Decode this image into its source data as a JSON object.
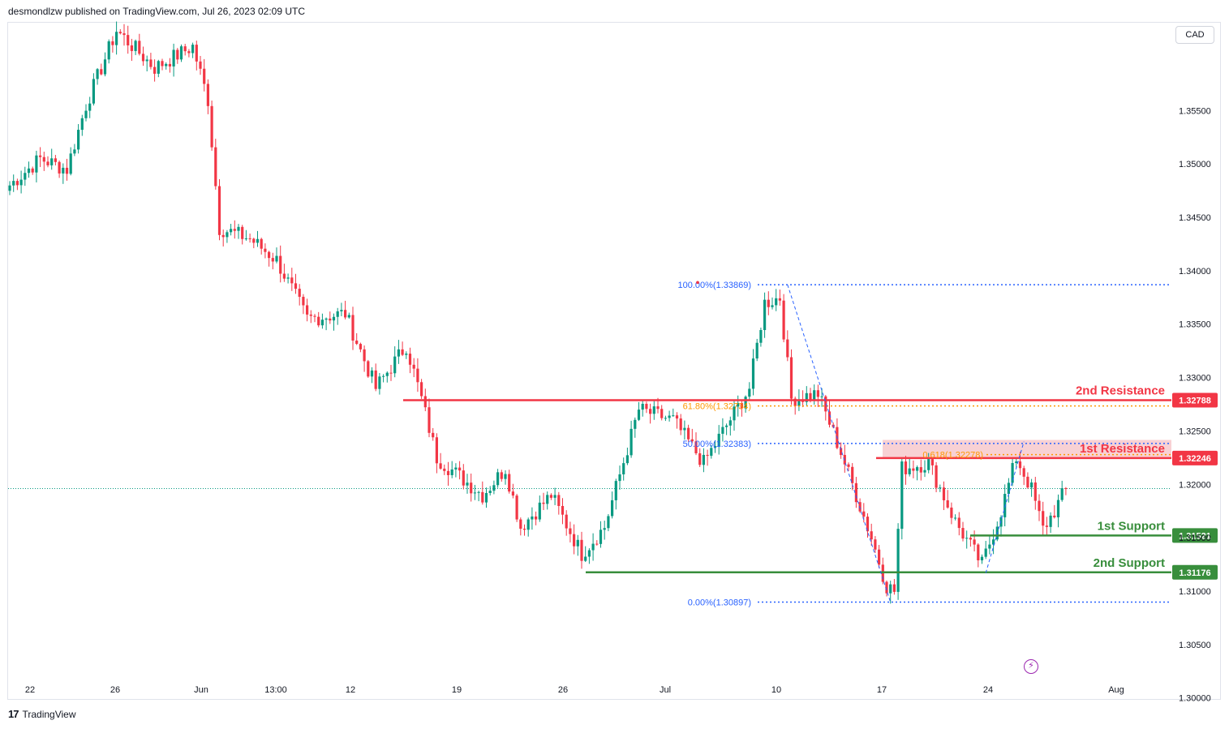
{
  "header": {
    "published_by": "desmondlzw published on TradingView.com, Jul 26, 2023 02:09 UTC"
  },
  "currency_label": "CAD",
  "footer": {
    "logo_mark": "17",
    "brand": "TradingView"
  },
  "colors": {
    "up": "#089981",
    "down": "#f23645",
    "resistance": "#f23645",
    "support": "#388e3c",
    "fib_blue": "#2962ff",
    "fib_orange": "#ff9800",
    "zone_fill": "#f7c9cd"
  },
  "chart_data": {
    "type": "candlestick",
    "title": "",
    "y_axis": {
      "unit": "CAD",
      "ylim": [
        1.2999,
        1.3633
      ],
      "ticks": [
        1.355,
        1.35,
        1.345,
        1.34,
        1.335,
        1.33,
        1.325,
        1.32,
        1.315,
        1.31,
        1.305,
        1.3
      ],
      "tick_labels": [
        "1.35500",
        "1.35000",
        "1.34500",
        "1.34000",
        "1.33500",
        "1.33000",
        "1.32500",
        "1.32000",
        "1.31500",
        "1.31000",
        "1.30500",
        "1.30000"
      ]
    },
    "x_axis": {
      "tick_labels": [
        "22",
        "26",
        "Jun",
        "13:00",
        "12",
        "19",
        "26",
        "Jul",
        "10",
        "17",
        "24",
        "Aug"
      ]
    },
    "grid": false,
    "last_price_guide": 1.3196,
    "levels": [
      {
        "name": "2nd Resistance",
        "value": 1.32788,
        "value_label": "1.32788",
        "kind": "resistance"
      },
      {
        "name": "1st Resistance",
        "value": 1.32246,
        "value_label": "1.32246",
        "kind": "resistance",
        "zone": [
          1.32246,
          1.32416
        ]
      },
      {
        "name": "1st Support",
        "value": 1.31521,
        "value_label": "1.31521",
        "kind": "support"
      },
      {
        "name": "2nd Support",
        "value": 1.31176,
        "value_label": "1.31176",
        "kind": "support"
      }
    ],
    "fibonacci": [
      {
        "label": "100.00%(1.33869)",
        "value": 1.33869,
        "color": "blue"
      },
      {
        "label": "61.80%(1.32734)",
        "value": 1.32734,
        "color": "orange"
      },
      {
        "label": "50.00%(1.32383)",
        "value": 1.32383,
        "color": "blue"
      },
      {
        "label": "0.00%(1.30897)",
        "value": 1.30897,
        "color": "blue"
      },
      {
        "label": "0.618(1.32278)",
        "value": 1.32278,
        "color": "orange"
      }
    ],
    "anchors": [
      {
        "x": 0,
        "y": 1.348
      },
      {
        "x": 8,
        "y": 1.3505
      },
      {
        "x": 15,
        "y": 1.3495
      },
      {
        "x": 20,
        "y": 1.3555
      },
      {
        "x": 28,
        "y": 1.3625
      },
      {
        "x": 38,
        "y": 1.359
      },
      {
        "x": 48,
        "y": 1.361
      },
      {
        "x": 52,
        "y": 1.356
      },
      {
        "x": 55,
        "y": 1.344
      },
      {
        "x": 63,
        "y": 1.343
      },
      {
        "x": 70,
        "y": 1.341
      },
      {
        "x": 78,
        "y": 1.3355
      },
      {
        "x": 88,
        "y": 1.336
      },
      {
        "x": 96,
        "y": 1.329
      },
      {
        "x": 104,
        "y": 1.333
      },
      {
        "x": 108,
        "y": 1.328
      },
      {
        "x": 112,
        "y": 1.3225
      },
      {
        "x": 124,
        "y": 1.319
      },
      {
        "x": 130,
        "y": 1.3215
      },
      {
        "x": 134,
        "y": 1.316
      },
      {
        "x": 142,
        "y": 1.319
      },
      {
        "x": 150,
        "y": 1.3135
      },
      {
        "x": 156,
        "y": 1.316
      },
      {
        "x": 165,
        "y": 1.327
      },
      {
        "x": 174,
        "y": 1.326
      },
      {
        "x": 182,
        "y": 1.322
      },
      {
        "x": 188,
        "y": 1.3255
      },
      {
        "x": 194,
        "y": 1.329
      },
      {
        "x": 198,
        "y": 1.337
      },
      {
        "x": 202,
        "y": 1.3375
      },
      {
        "x": 205,
        "y": 1.328
      },
      {
        "x": 212,
        "y": 1.3285
      },
      {
        "x": 218,
        "y": 1.323
      },
      {
        "x": 226,
        "y": 1.315
      },
      {
        "x": 230,
        "y": 1.3105
      },
      {
        "x": 232,
        "y": 1.31
      },
      {
        "x": 234,
        "y": 1.3215
      },
      {
        "x": 241,
        "y": 1.322
      },
      {
        "x": 248,
        "y": 1.3165
      },
      {
        "x": 255,
        "y": 1.3125
      },
      {
        "x": 260,
        "y": 1.3175
      },
      {
        "x": 264,
        "y": 1.3225
      },
      {
        "x": 268,
        "y": 1.3195
      },
      {
        "x": 271,
        "y": 1.3158
      },
      {
        "x": 274,
        "y": 1.3175
      },
      {
        "x": 277,
        "y": 1.3196
      }
    ],
    "bar_count": 278,
    "annotation_lines": [
      {
        "from": {
          "x": 204,
          "y": 1.33869
        },
        "to": {
          "x": 231,
          "y": 1.30897
        },
        "style": "dashed-blue"
      },
      {
        "from": {
          "x": 256,
          "y": 1.3117
        },
        "to": {
          "x": 266,
          "y": 1.324
        },
        "style": "dashed-blue"
      }
    ]
  }
}
